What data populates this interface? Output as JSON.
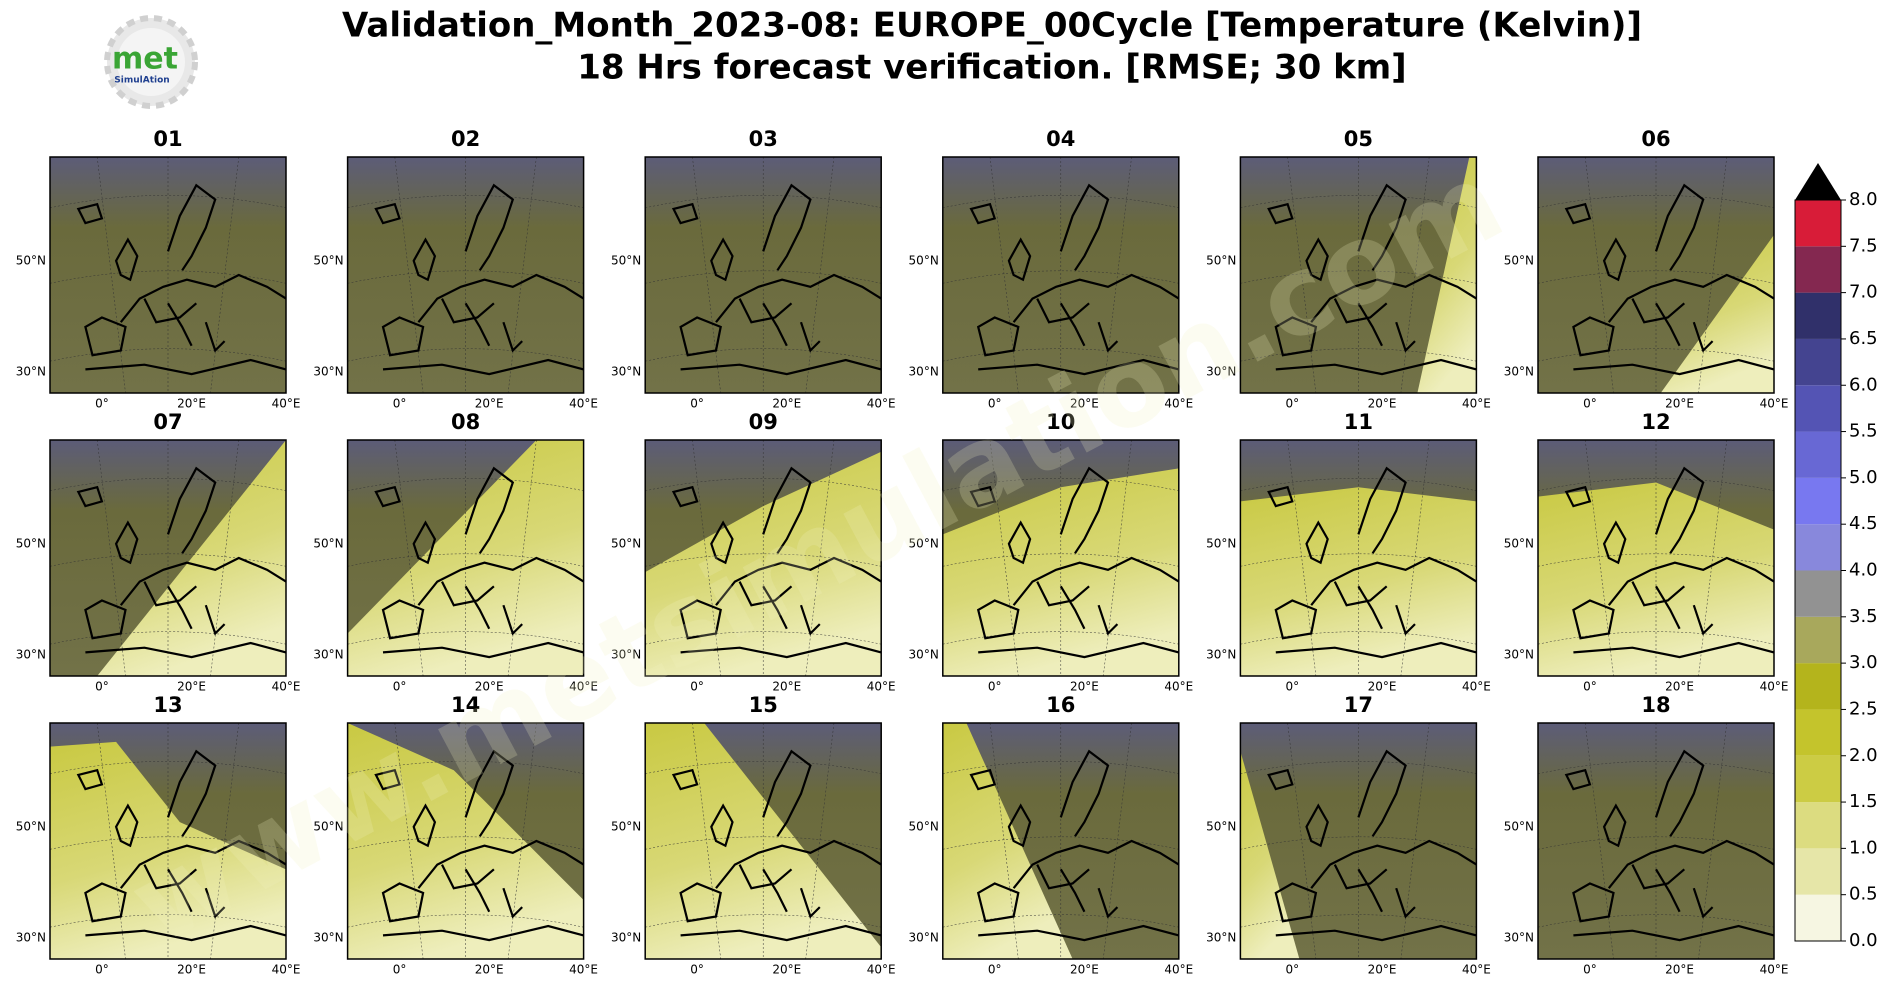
{
  "logo": {
    "name": "met",
    "subname": "SimulAtion"
  },
  "title": {
    "line1": "Validation_Month_2023-08: EUROPE_00Cycle [Temperature (Kelvin)]",
    "line2": "18 Hrs forecast verification.  [RMSE; 30 km]"
  },
  "watermark": "www.metsimulation.com",
  "panels": [
    "01",
    "02",
    "03",
    "04",
    "05",
    "06",
    "07",
    "08",
    "09",
    "10",
    "11",
    "12",
    "13",
    "14",
    "15",
    "16",
    "17",
    "18"
  ],
  "lat_labels": [
    "50°N",
    "30°N"
  ],
  "lon_labels": [
    "0°",
    "20°E",
    "40°E"
  ],
  "colorbar": {
    "ticks": [
      {
        "value": 0,
        "label": "0.0"
      },
      {
        "value": 0.5,
        "label": "0.5"
      },
      {
        "value": 1,
        "label": "1.0"
      },
      {
        "value": 1.5,
        "label": "1.5"
      },
      {
        "value": 2,
        "label": "2.0"
      },
      {
        "value": 2.5,
        "label": "2.5"
      },
      {
        "value": 3,
        "label": "3.0"
      },
      {
        "value": 3.5,
        "label": "3.5"
      },
      {
        "value": 4,
        "label": "4.0"
      },
      {
        "value": 4.5,
        "label": "4.5"
      },
      {
        "value": 5,
        "label": "5.0"
      },
      {
        "value": 5.5,
        "label": "5.5"
      },
      {
        "value": 6,
        "label": "6.0"
      },
      {
        "value": 6.5,
        "label": "6.5"
      },
      {
        "value": 7,
        "label": "7.0"
      },
      {
        "value": 7.5,
        "label": "7.5"
      },
      {
        "value": 8,
        "label": "8.0"
      }
    ],
    "colors": [
      "#f6f6e2",
      "#e6e6a8",
      "#dcdc80",
      "#cccc44",
      "#c4c42c",
      "#b4b41c",
      "#a8a85c",
      "#929292",
      "#8888dc",
      "#7878f0",
      "#6868d4",
      "#5454b4",
      "#444490",
      "#30306a",
      "#842850",
      "#d81c38",
      "#800c18"
    ],
    "extend_color": "#000000"
  }
}
